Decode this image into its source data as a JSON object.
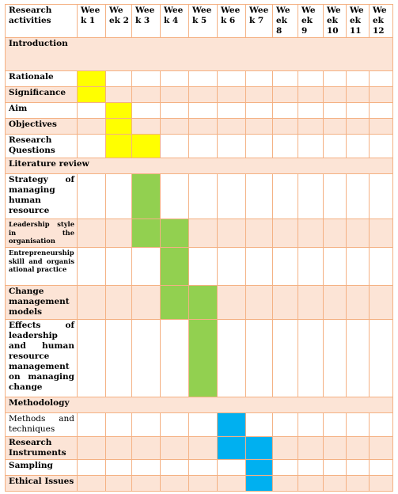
{
  "header": {
    "activities": "Research activities",
    "weeks": [
      "Wee k 1",
      "We ek 2",
      "Wee k 3",
      "Wee k 4",
      "Wee k 5",
      "Wee k 6",
      "Wee k 7",
      "We ek 8",
      "We ek 9",
      "We ek 10",
      "We ek 11",
      "We ek 12"
    ]
  },
  "sections": {
    "introduction": "Introduction",
    "literature_review": "Literature review",
    "methodology": "Methodology"
  },
  "activities": {
    "rationale": "Rationale",
    "significance": "Significance",
    "aim": "Aim",
    "objectives": "Objectives",
    "research_questions": "Research Questions",
    "strategy": "Strategy of managing human resource",
    "leadership_style": "Leadership style in the organisation",
    "entrepreneurship": "Entrepreneurship skill and organisational practice",
    "change_management": "Change management models",
    "effects": "Effects of leadership and human resource management on managing change",
    "methods": "Methods and techniques",
    "instruments": "Research Instruments",
    "sampling": "Sampling",
    "ethical": "Ethical Issues"
  },
  "schedule": {
    "rationale": [
      1
    ],
    "significance": [
      1
    ],
    "aim": [
      2
    ],
    "objectives": [
      2
    ],
    "research_questions": [
      2,
      3
    ],
    "strategy": [
      3
    ],
    "leadership_style": [
      3,
      4
    ],
    "entrepreneurship": [
      4
    ],
    "change_management": [
      4,
      5
    ],
    "effects": [
      5
    ],
    "methods": [
      6
    ],
    "instruments": [
      6,
      7
    ],
    "sampling": [
      7
    ],
    "ethical": [
      7
    ]
  },
  "colors": {
    "border": "#f4b183",
    "tint": "#fce4d6",
    "introduction": "#ffff00",
    "literature_review": "#92d050",
    "methodology": "#00b0f0"
  }
}
